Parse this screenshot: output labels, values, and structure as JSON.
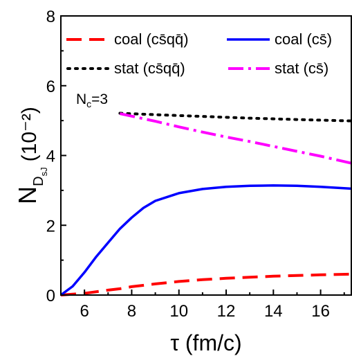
{
  "chart_data": {
    "type": "line",
    "xlabel": "τ (fm/c)",
    "ylabel": "N",
    "ylabel_sub": "D",
    "ylabel_subsub": "sJ",
    "ylabel_unit": "(10⁻²)",
    "xlim": [
      5,
      17.3
    ],
    "ylim": [
      0,
      8
    ],
    "xticks": [
      6,
      8,
      10,
      12,
      14,
      16
    ],
    "yticks": [
      0,
      2,
      4,
      6,
      8
    ],
    "grid": false,
    "legend_placement": "top",
    "annotation": {
      "text": "N",
      "sub": "c",
      "rest": "=3"
    },
    "series": [
      {
        "name": "coal (cs̄qq̄)",
        "style": "dashed",
        "color": "#ff0000",
        "x": [
          5.0,
          6.0,
          7.0,
          7.5,
          8.0,
          9.0,
          10.0,
          11.0,
          12.0,
          13.0,
          14.0,
          15.0,
          16.0,
          17.3
        ],
        "y": [
          0.0,
          0.05,
          0.14,
          0.18,
          0.24,
          0.32,
          0.39,
          0.44,
          0.48,
          0.51,
          0.54,
          0.56,
          0.58,
          0.6
        ]
      },
      {
        "name": "coal (cs̄)",
        "style": "solid",
        "color": "#0000ff",
        "x": [
          5.0,
          5.5,
          6.0,
          6.5,
          7.0,
          7.5,
          8.0,
          8.5,
          9.0,
          10.0,
          11.0,
          12.0,
          13.0,
          14.0,
          15.0,
          16.0,
          17.3
        ],
        "y": [
          0.0,
          0.25,
          0.65,
          1.1,
          1.5,
          1.9,
          2.22,
          2.5,
          2.7,
          2.92,
          3.04,
          3.1,
          3.13,
          3.14,
          3.13,
          3.1,
          3.05
        ]
      },
      {
        "name": "stat (cs̄qq̄)",
        "style": "dotted",
        "color": "#000000",
        "x": [
          7.5,
          9.0,
          11.0,
          13.0,
          15.0,
          17.3
        ],
        "y": [
          5.21,
          5.17,
          5.12,
          5.07,
          5.03,
          4.99
        ]
      },
      {
        "name": "stat (cs̄)",
        "style": "dashdot",
        "color": "#ff00ff",
        "x": [
          7.5,
          9.0,
          10.0,
          11.0,
          12.0,
          13.0,
          14.0,
          15.0,
          16.0,
          17.3
        ],
        "y": [
          5.2,
          4.98,
          4.82,
          4.67,
          4.53,
          4.4,
          4.26,
          4.12,
          3.98,
          3.78
        ]
      }
    ]
  }
}
